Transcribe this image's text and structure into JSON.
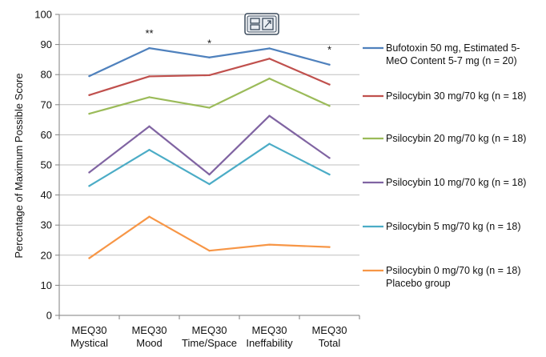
{
  "chart_data": {
    "type": "line",
    "title": "",
    "xlabel": "",
    "ylabel": "Percentage of Maximum Possible Score",
    "ylim": [
      0,
      100
    ],
    "yticks": [
      0,
      10,
      20,
      30,
      40,
      50,
      60,
      70,
      80,
      90,
      100
    ],
    "grid": true,
    "legend_position": "right",
    "categories": [
      [
        "MEQ30",
        "Mystical"
      ],
      [
        "MEQ30",
        "Mood"
      ],
      [
        "MEQ30",
        "Time/Space"
      ],
      [
        "MEQ30",
        "Ineffability"
      ],
      [
        "MEQ30",
        "Total"
      ]
    ],
    "series": [
      {
        "name_lines": [
          "Bufotoxin 50 mg, Estimated 5-",
          "MeO Content 5-7 mg (n = 20)"
        ],
        "color": "#4f81bd",
        "values": [
          79.5,
          88.8,
          85.7,
          88.7,
          83.3
        ]
      },
      {
        "name_lines": [
          "Psilocybin 30 mg/70 kg (n = 18)"
        ],
        "color": "#c0504d",
        "values": [
          73.2,
          79.4,
          79.8,
          85.3,
          76.7
        ]
      },
      {
        "name_lines": [
          "Psilocybin 20 mg/70 kg (n = 18)"
        ],
        "color": "#9bbb59",
        "values": [
          67.0,
          72.5,
          69.0,
          78.7,
          69.6
        ]
      },
      {
        "name_lines": [
          "Psilocybin 10 mg/70 kg (n = 18)"
        ],
        "color": "#8064a2",
        "values": [
          47.5,
          62.8,
          46.8,
          66.3,
          52.3
        ]
      },
      {
        "name_lines": [
          "Psilocybin 5 mg/70 kg (n = 18)"
        ],
        "color": "#4bacc6",
        "values": [
          43.0,
          55.0,
          43.6,
          57.0,
          46.8
        ]
      },
      {
        "name_lines": [
          "Psilocybin 0 mg/70 kg (n = 18)",
          "Placebo group"
        ],
        "color": "#f79646",
        "values": [
          19.0,
          32.8,
          21.5,
          23.5,
          22.7
        ]
      }
    ],
    "annotations": [
      {
        "category_index": 1,
        "value": 92.5,
        "text": "**"
      },
      {
        "category_index": 2,
        "value": 89.2,
        "text": "*"
      },
      {
        "category_index": 4,
        "value": 87.1,
        "text": "*"
      }
    ]
  },
  "ui": {
    "expand_icon": "expand-icon",
    "icon_color": "#3a4a5c"
  }
}
